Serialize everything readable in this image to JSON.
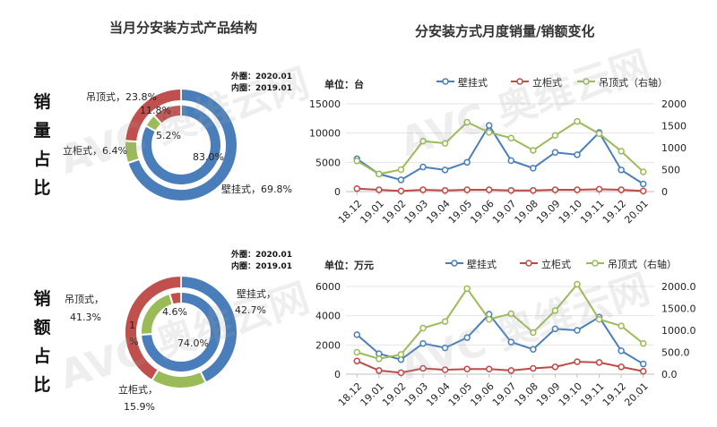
{
  "colors": {
    "wall": "#4a7ebb",
    "floor": "#be4b48",
    "ceiling": "#9bbb59",
    "ceiling_dark": "#c0504d",
    "axis": "#bfbfbf"
  },
  "watermark": "AVC 奥维云网",
  "left": {
    "title": "当月分安装方式产品结构",
    "sales_volume": {
      "row_label": [
        "销",
        "量",
        "占",
        "比"
      ],
      "note_outer": "外圈：2020.01",
      "note_inner": "内圈：2019.01",
      "label_ceiling": "吊顶式，23.8%",
      "label_floor": "立柜式，6.4%",
      "label_wall": "壁挂式，69.8%",
      "inner_ceiling": "11.8%",
      "inner_floor": "5.2%",
      "inner_wall": "83.0%"
    },
    "sales_amount": {
      "row_label": [
        "销",
        "额",
        "占",
        "比"
      ],
      "note_outer": "外圈：2020.01",
      "note_inner": "内圈：2019.01",
      "label_ceiling_a": "吊顶式，",
      "label_ceiling_b": "41.3%",
      "label_floor_a": "立柜式，",
      "label_floor_b": "15.9%",
      "label_wall_a": "壁挂式，",
      "label_wall_b": "42.7%",
      "inner_ceiling": "4.6%",
      "inner_floor": "1",
      "inner_floor_b": "%",
      "inner_wall": "74.0%"
    }
  },
  "right": {
    "title": "分安装方式月度销量/销额变化",
    "volume": {
      "unit": "单位：台",
      "legend_wall": "壁挂式",
      "legend_floor": "立柜式",
      "legend_ceiling": "吊顶式（右轴）"
    },
    "amount": {
      "unit": "单位：万元",
      "legend_wall": "壁挂式",
      "legend_floor": "立柜式",
      "legend_ceiling": "吊顶式（右轴）"
    }
  },
  "chart_data": [
    {
      "type": "pie",
      "title": "",
      "rings": [
        {
          "ring": "外圈：2020.01",
          "slices": [
            {
              "name": "壁挂式",
              "value": 69.8
            },
            {
              "name": "立柜式",
              "value": 6.4
            },
            {
              "name": "吊顶式",
              "value": 23.8
            }
          ]
        },
        {
          "ring": "内圈：2019.01",
          "slices": [
            {
              "name": "壁挂式",
              "value": 83.0
            },
            {
              "name": "立柜式",
              "value": 5.2
            },
            {
              "name": "吊顶式",
              "value": 11.8
            }
          ]
        }
      ]
    },
    {
      "type": "pie",
      "title": "",
      "rings": [
        {
          "ring": "外圈：2020.01",
          "slices": [
            {
              "name": "壁挂式",
              "value": 42.7
            },
            {
              "name": "立柜式",
              "value": 15.9
            },
            {
              "name": "吊顶式",
              "value": 41.3
            }
          ]
        },
        {
          "ring": "内圈：2019.01",
          "slices": [
            {
              "name": "壁挂式",
              "value": 74.0
            },
            {
              "name": "立柜式",
              "value": 21.4
            },
            {
              "name": "吊顶式",
              "value": 4.6
            }
          ]
        }
      ]
    },
    {
      "type": "line",
      "title": "",
      "categories": [
        "18.12",
        "19.01",
        "19.02",
        "19.03",
        "19.04",
        "19.05",
        "19.06",
        "19.07",
        "19.08",
        "19.09",
        "19.10",
        "19.11",
        "19.12",
        "20.01"
      ],
      "series": [
        {
          "name": "壁挂式",
          "axis": "left",
          "values": [
            5600,
            3000,
            2000,
            4200,
            3700,
            5000,
            11300,
            5300,
            4000,
            6700,
            6300,
            10100,
            3700,
            1300
          ]
        },
        {
          "name": "立柜式",
          "axis": "left",
          "values": [
            500,
            300,
            100,
            300,
            200,
            300,
            300,
            200,
            200,
            300,
            300,
            400,
            300,
            100
          ]
        },
        {
          "name": "吊顶式（右轴）",
          "axis": "right",
          "values": [
            700,
            400,
            500,
            1150,
            1100,
            1580,
            1350,
            1220,
            940,
            1280,
            1600,
            1320,
            920,
            450
          ]
        }
      ],
      "ylim": [
        0,
        15000
      ],
      "yticks": [
        0,
        5000,
        10000,
        15000
      ],
      "y2lim": [
        0,
        2000
      ],
      "y2ticks": [
        0,
        500,
        1000,
        1500,
        2000
      ],
      "grid": true,
      "legend": "top"
    },
    {
      "type": "line",
      "title": "",
      "categories": [
        "18.12",
        "19.01",
        "19.02",
        "19.03",
        "19.04",
        "19.05",
        "19.06",
        "19.07",
        "19.08",
        "19.09",
        "19.10",
        "19.11",
        "19.12",
        "20.01"
      ],
      "series": [
        {
          "name": "壁挂式",
          "axis": "left",
          "values": [
            2700,
            1400,
            1000,
            2100,
            1800,
            2500,
            4100,
            2200,
            1700,
            3100,
            3000,
            3900,
            1600,
            700
          ]
        },
        {
          "name": "立柜式",
          "axis": "left",
          "values": [
            900,
            250,
            100,
            400,
            300,
            350,
            350,
            250,
            400,
            500,
            850,
            800,
            500,
            200
          ]
        },
        {
          "name": "吊顶式（右轴）",
          "axis": "right",
          "values": [
            500,
            350,
            450,
            1050,
            1200,
            1950,
            1250,
            1380,
            950,
            1450,
            2050,
            1250,
            1100,
            700
          ]
        }
      ],
      "ylim": [
        0,
        6000
      ],
      "yticks": [
        0,
        2000,
        4000,
        6000
      ],
      "y2lim": [
        0,
        2000
      ],
      "y2ticks": [
        "0.0",
        "500.0",
        "1000.0",
        "1500.0",
        "2000.0"
      ],
      "grid": true,
      "legend": "top"
    }
  ]
}
